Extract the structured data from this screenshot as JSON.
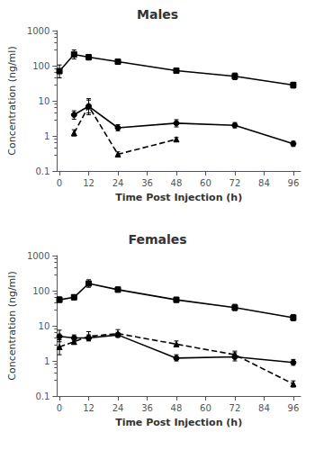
{
  "chart_data": [
    {
      "type": "line",
      "title": "Males",
      "xlabel": "Time Post Injection (h)",
      "ylabel": "Concentration (ng/ml)",
      "log": "y",
      "grid": false,
      "color": "black",
      "xlim": [
        -1,
        99
      ],
      "xticks": [
        0,
        12,
        24,
        36,
        48,
        60,
        72,
        84,
        96
      ],
      "ylim": [
        0.1,
        1000
      ],
      "yticks": [
        0.1,
        1,
        10,
        100,
        1000
      ],
      "series": [
        {
          "marker": "square",
          "line_style": "solid",
          "x": [
            0,
            6,
            12,
            24,
            48,
            72,
            96
          ],
          "values": [
            70,
            210,
            175,
            130,
            72,
            50,
            28
          ],
          "err_lo": [
            25,
            55,
            30,
            20,
            8,
            10,
            5
          ],
          "err_hi": [
            35,
            70,
            35,
            25,
            10,
            12,
            6
          ]
        },
        {
          "marker": "circle",
          "line_style": "solid",
          "x": [
            6,
            12,
            24,
            48,
            72,
            96
          ],
          "values": [
            4.0,
            7.0,
            1.7,
            2.3,
            2.0,
            0.6
          ],
          "err_lo": [
            1.0,
            2.5,
            0.3,
            0.5,
            0.3,
            0.1
          ],
          "err_hi": [
            1.2,
            3.5,
            0.4,
            0.6,
            0.4,
            0.1
          ]
        },
        {
          "marker": "triangle",
          "line_style": "dashed",
          "x": [
            6,
            12,
            24,
            48
          ],
          "values": [
            1.2,
            7.0,
            0.3,
            0.8
          ],
          "err_lo": [
            0.2,
            3.0,
            0.05,
            0.1
          ],
          "err_hi": [
            0.3,
            4.5,
            0.05,
            0.1
          ]
        }
      ]
    },
    {
      "type": "line",
      "title": "Females",
      "xlabel": "Time Post Injection (h)",
      "ylabel": "Concentration (ng/ml)",
      "log": "y",
      "grid": false,
      "color": "black",
      "xlim": [
        -1,
        99
      ],
      "xticks": [
        0,
        12,
        24,
        36,
        48,
        60,
        72,
        84,
        96
      ],
      "ylim": [
        0.1,
        1000
      ],
      "yticks": [
        0.1,
        1,
        10,
        100,
        1000
      ],
      "series": [
        {
          "marker": "square",
          "line_style": "solid",
          "x": [
            0,
            6,
            12,
            24,
            48,
            72,
            96
          ],
          "values": [
            55,
            65,
            160,
            107,
            55,
            33,
            17
          ],
          "err_lo": [
            8,
            10,
            35,
            15,
            8,
            6,
            3
          ],
          "err_hi": [
            12,
            12,
            45,
            20,
            10,
            8,
            4
          ]
        },
        {
          "marker": "circle",
          "line_style": "solid",
          "x": [
            0,
            6,
            12,
            24,
            48,
            72,
            96
          ],
          "values": [
            5.0,
            4.5,
            4.5,
            5.5,
            1.2,
            1.3,
            0.9
          ],
          "err_lo": [
            1.5,
            0.8,
            0.8,
            0.8,
            0.2,
            0.3,
            0.15
          ],
          "err_hi": [
            2.5,
            1.0,
            1.0,
            1.0,
            0.3,
            0.4,
            0.2
          ]
        },
        {
          "marker": "triangle",
          "line_style": "dashed",
          "x": [
            0,
            6,
            12,
            24,
            48,
            72,
            96
          ],
          "values": [
            2.5,
            3.5,
            5.0,
            6.0,
            3.0,
            1.5,
            0.22
          ],
          "err_lo": [
            1.0,
            0.5,
            1.2,
            1.2,
            0.5,
            0.3,
            0.04
          ],
          "err_hi": [
            1.5,
            0.8,
            1.8,
            1.8,
            0.7,
            0.4,
            0.05
          ]
        }
      ]
    }
  ]
}
